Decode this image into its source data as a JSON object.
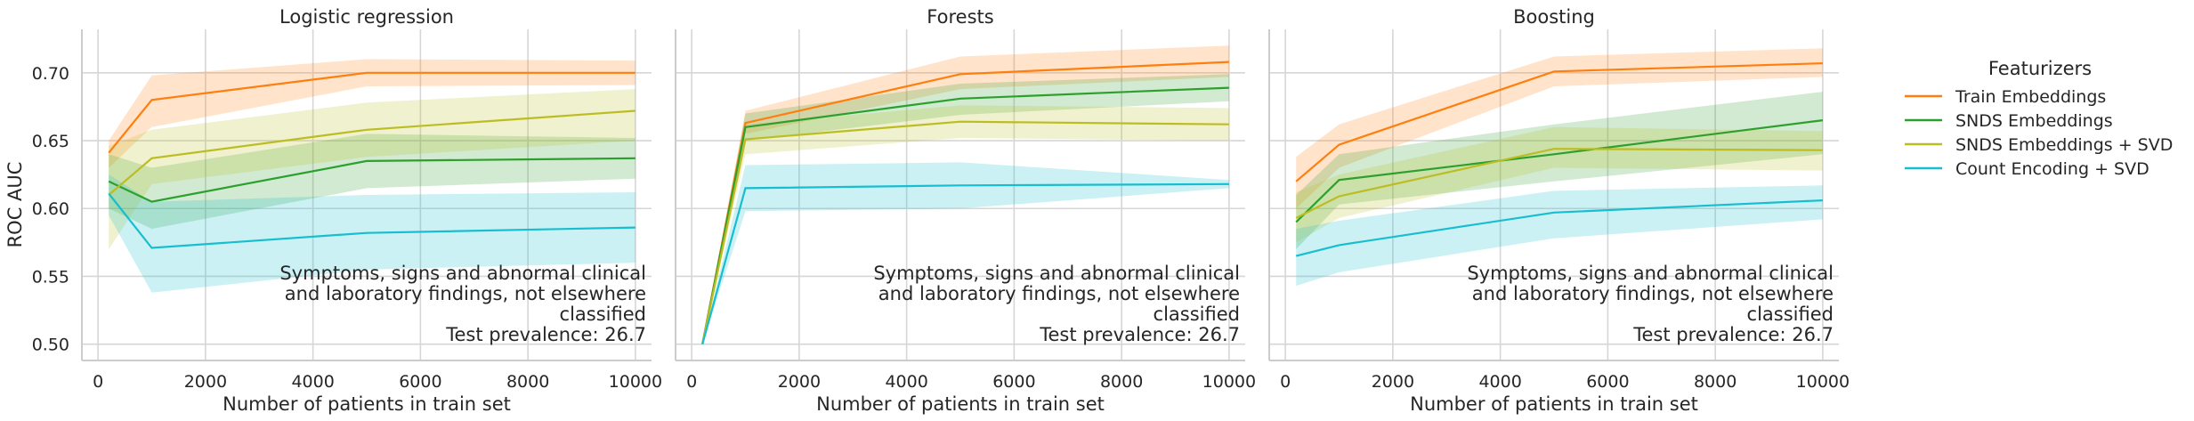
{
  "figure": {
    "ylabel": "ROC AUC",
    "xlabel": "Number of patients in train set",
    "legend": {
      "title": "Featurizers",
      "entries": [
        {
          "label": "Train Embeddings",
          "color": "#ff7f0e"
        },
        {
          "label": "SNDS Embeddings",
          "color": "#2ca02c"
        },
        {
          "label": "SNDS Embeddings + SVD",
          "color": "#bcbd22"
        },
        {
          "label": "Count Encoding + SVD",
          "color": "#17becf"
        }
      ]
    }
  },
  "chart_data": [
    {
      "type": "line",
      "title": "Logistic regression",
      "xlabel": "Number of patients in train set",
      "ylabel": "ROC AUC",
      "xlim": [
        -300,
        10300
      ],
      "ylim": [
        0.488,
        0.732
      ],
      "xticks": [
        0,
        2000,
        4000,
        6000,
        8000,
        10000
      ],
      "yticks": [
        0.5,
        0.55,
        0.6,
        0.65,
        0.7
      ],
      "ytick_labels": [
        "0.50",
        "0.55",
        "0.60",
        "0.65",
        "0.70"
      ],
      "grid": true,
      "annotation": [
        "Symptoms, signs and abnormal clinical",
        "and laboratory findings, not elsewhere",
        "classified",
        "Test prevalence: 26.7"
      ],
      "x": [
        200,
        1000,
        5000,
        10000
      ],
      "series": [
        {
          "name": "Train Embeddings",
          "color": "#ff7f0e",
          "values": [
            0.641,
            0.68,
            0.7,
            0.7
          ],
          "lower": [
            0.63,
            0.66,
            0.69,
            0.691
          ],
          "upper": [
            0.65,
            0.698,
            0.71,
            0.709
          ]
        },
        {
          "name": "SNDS Embeddings",
          "color": "#2ca02c",
          "values": [
            0.62,
            0.605,
            0.635,
            0.637
          ],
          "lower": [
            0.6,
            0.585,
            0.615,
            0.622
          ],
          "upper": [
            0.64,
            0.63,
            0.655,
            0.652
          ]
        },
        {
          "name": "SNDS Embeddings + SVD",
          "color": "#bcbd22",
          "values": [
            0.61,
            0.637,
            0.658,
            0.672
          ],
          "lower": [
            0.57,
            0.618,
            0.638,
            0.65
          ],
          "upper": [
            0.646,
            0.658,
            0.678,
            0.688
          ]
        },
        {
          "name": "Count Encoding + SVD",
          "color": "#17becf",
          "values": [
            0.611,
            0.571,
            0.582,
            0.586
          ],
          "lower": [
            0.595,
            0.538,
            0.555,
            0.56
          ],
          "upper": [
            0.625,
            0.605,
            0.61,
            0.612
          ]
        }
      ]
    },
    {
      "type": "line",
      "title": "Forests",
      "xlabel": "Number of patients in train set",
      "ylabel": "ROC AUC",
      "xlim": [
        -300,
        10300
      ],
      "ylim": [
        0.488,
        0.732
      ],
      "xticks": [
        0,
        2000,
        4000,
        6000,
        8000,
        10000
      ],
      "yticks": [
        0.5,
        0.55,
        0.6,
        0.65,
        0.7
      ],
      "grid": true,
      "annotation": [
        "Symptoms, signs and abnormal clinical",
        "and laboratory findings, not elsewhere",
        "classified",
        "Test prevalence: 26.7"
      ],
      "x": [
        200,
        1000,
        5000,
        10000
      ],
      "series": [
        {
          "name": "Train Embeddings",
          "color": "#ff7f0e",
          "values": [
            0.5,
            0.663,
            0.699,
            0.708
          ],
          "lower": [
            0.5,
            0.655,
            0.688,
            0.697
          ],
          "upper": [
            0.5,
            0.672,
            0.712,
            0.72
          ]
        },
        {
          "name": "SNDS Embeddings",
          "color": "#2ca02c",
          "values": [
            0.5,
            0.66,
            0.681,
            0.689
          ],
          "lower": [
            0.5,
            0.65,
            0.669,
            0.679
          ],
          "upper": [
            0.5,
            0.67,
            0.692,
            0.699
          ]
        },
        {
          "name": "SNDS Embeddings + SVD",
          "color": "#bcbd22",
          "values": [
            0.5,
            0.651,
            0.664,
            0.662
          ],
          "lower": [
            0.5,
            0.64,
            0.652,
            0.65
          ],
          "upper": [
            0.5,
            0.662,
            0.676,
            0.674
          ]
        },
        {
          "name": "Count Encoding + SVD",
          "color": "#17becf",
          "values": [
            0.5,
            0.615,
            0.617,
            0.618
          ],
          "lower": [
            0.5,
            0.598,
            0.6,
            0.615
          ],
          "upper": [
            0.5,
            0.632,
            0.634,
            0.621
          ]
        }
      ]
    },
    {
      "type": "line",
      "title": "Boosting",
      "xlabel": "Number of patients in train set",
      "ylabel": "ROC AUC",
      "xlim": [
        -300,
        10300
      ],
      "ylim": [
        0.488,
        0.732
      ],
      "xticks": [
        0,
        2000,
        4000,
        6000,
        8000,
        10000
      ],
      "yticks": [
        0.5,
        0.55,
        0.6,
        0.65,
        0.7
      ],
      "grid": true,
      "annotation": [
        "Symptoms, signs and abnormal clinical",
        "and laboratory findings, not elsewhere",
        "classified",
        "Test prevalence: 26.7"
      ],
      "x": [
        200,
        1000,
        5000,
        10000
      ],
      "series": [
        {
          "name": "Train Embeddings",
          "color": "#ff7f0e",
          "values": [
            0.62,
            0.647,
            0.701,
            0.707
          ],
          "lower": [
            0.6,
            0.63,
            0.69,
            0.697
          ],
          "upper": [
            0.638,
            0.662,
            0.712,
            0.718
          ]
        },
        {
          "name": "SNDS Embeddings",
          "color": "#2ca02c",
          "values": [
            0.59,
            0.621,
            0.64,
            0.665
          ],
          "lower": [
            0.57,
            0.603,
            0.62,
            0.64
          ],
          "upper": [
            0.61,
            0.64,
            0.662,
            0.686
          ]
        },
        {
          "name": "SNDS Embeddings + SVD",
          "color": "#bcbd22",
          "values": [
            0.593,
            0.609,
            0.644,
            0.643
          ],
          "lower": [
            0.575,
            0.593,
            0.63,
            0.628
          ],
          "upper": [
            0.612,
            0.625,
            0.66,
            0.657
          ]
        },
        {
          "name": "Count Encoding + SVD",
          "color": "#17becf",
          "values": [
            0.565,
            0.573,
            0.597,
            0.606
          ],
          "lower": [
            0.543,
            0.553,
            0.578,
            0.592
          ],
          "upper": [
            0.585,
            0.591,
            0.613,
            0.617
          ]
        }
      ]
    }
  ]
}
